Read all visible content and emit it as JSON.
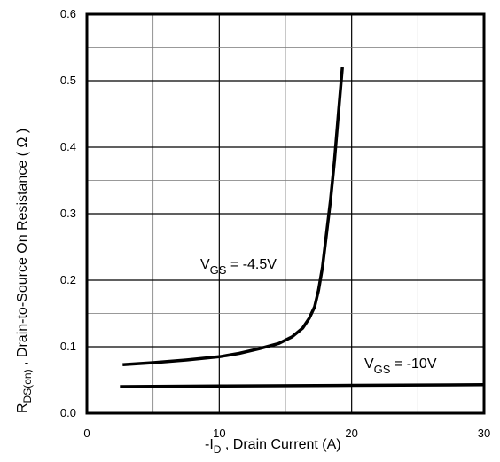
{
  "chart_data": {
    "type": "line",
    "xlabel_parts": {
      "prefix": "-I",
      "sub": "D",
      "suffix": " , Drain Current  (A)"
    },
    "ylabel_parts": {
      "prefix": "R",
      "sub": "DS(on)",
      "suffix": " ,  Drain-to-Source On Resistance ( Ω )"
    },
    "xlim": [
      0,
      30
    ],
    "ylim": [
      0,
      0.6
    ],
    "x_ticks": [
      "0",
      "10",
      "20",
      "30"
    ],
    "y_ticks": [
      "0.0",
      "0.1",
      "0.2",
      "0.3",
      "0.4",
      "0.5",
      "0.6"
    ],
    "grid": true,
    "series": [
      {
        "name": "VGS = -4.5V",
        "label_parts": {
          "prefix": "V",
          "sub": "GS",
          "suffix": " = -4.5V"
        },
        "x": [
          2.7,
          5,
          7.5,
          10,
          11.5,
          13,
          14.5,
          15.5,
          16.3,
          16.8,
          17.2,
          17.5,
          17.8,
          18.1,
          18.4,
          18.7,
          19.0,
          19.3
        ],
        "y": [
          0.073,
          0.076,
          0.08,
          0.085,
          0.09,
          0.097,
          0.105,
          0.115,
          0.128,
          0.143,
          0.16,
          0.185,
          0.22,
          0.27,
          0.32,
          0.38,
          0.45,
          0.52
        ]
      },
      {
        "name": "VGS = -10V",
        "label_parts": {
          "prefix": "V",
          "sub": "GS",
          "suffix": " = -10V"
        },
        "x": [
          2.5,
          10,
          20,
          30
        ],
        "y": [
          0.04,
          0.041,
          0.042,
          0.043
        ]
      }
    ]
  }
}
